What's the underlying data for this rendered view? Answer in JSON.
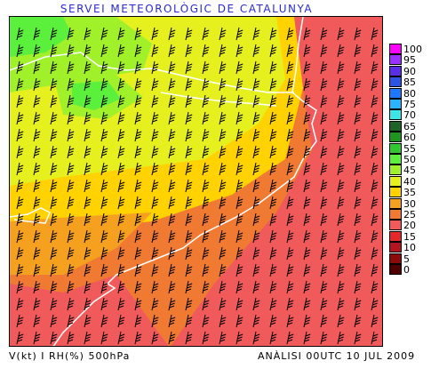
{
  "header": {
    "title": "SERVEI METEOROLÒGIC DE CATALUNYA"
  },
  "footer": {
    "left": "V(kt) I RH(%) 500hPa",
    "right": "ANÀLISI 00UTC 10 JUL 2009"
  },
  "legend": {
    "items": [
      {
        "label": "100",
        "color": "#ff00ff"
      },
      {
        "label": "95",
        "color": "#9b30ff"
      },
      {
        "label": "90",
        "color": "#5a2ee6"
      },
      {
        "label": "85",
        "color": "#2c55e6"
      },
      {
        "label": "80",
        "color": "#1e78ff"
      },
      {
        "label": "75",
        "color": "#2ab4ff"
      },
      {
        "label": "70",
        "color": "#3ce6e6"
      },
      {
        "label": "65",
        "color": "#1e6428"
      },
      {
        "label": "60",
        "color": "#1e961e"
      },
      {
        "label": "55",
        "color": "#30c830"
      },
      {
        "label": "50",
        "color": "#5af03c"
      },
      {
        "label": "45",
        "color": "#a0f02a"
      },
      {
        "label": "40",
        "color": "#e6f01e"
      },
      {
        "label": "35",
        "color": "#ffd200"
      },
      {
        "label": "30",
        "color": "#f5a01e"
      },
      {
        "label": "25",
        "color": "#f07a32"
      },
      {
        "label": "20",
        "color": "#f05a5a"
      },
      {
        "label": "15",
        "color": "#e62828"
      },
      {
        "label": "10",
        "color": "#b4141e"
      },
      {
        "label": "5",
        "color": "#8c0a0a"
      },
      {
        "label": "0",
        "color": "#500000"
      }
    ]
  },
  "map": {
    "variable": "relative humidity (%)",
    "wind_barbs": "wind at 500hPa (kt)",
    "coastline_color": "#ffffff",
    "wind_barb_color": "#000000"
  }
}
